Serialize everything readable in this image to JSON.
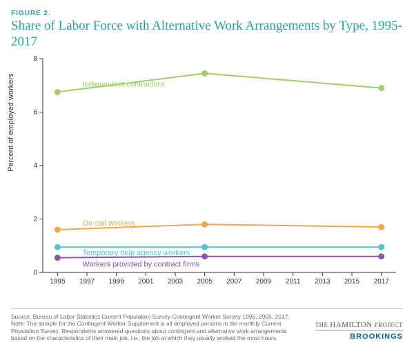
{
  "figure_label": "FIGURE 2.",
  "title": "Share of Labor Force with Alternative Work Arrangements by Type, 1995-2017",
  "chart": {
    "type": "line",
    "background_color": "#ffffff",
    "axis_color": "#333333",
    "axis_fontsize": 10,
    "title_fontsize": 19,
    "title_color": "#1fa79a",
    "label_fontsize": 11,
    "line_width": 2,
    "marker_radius": 4.5,
    "marker_style": "circle",
    "tick_len": 5,
    "xlabel": "",
    "ylabel": "Percent of employed workers",
    "xlim": [
      1994,
      2018
    ],
    "ylim": [
      0,
      8
    ],
    "xticks": [
      1995,
      1997,
      1999,
      2001,
      2003,
      2005,
      2007,
      2009,
      2011,
      2013,
      2015,
      2017
    ],
    "yticks": [
      0,
      2,
      4,
      6,
      8
    ],
    "grid": false,
    "series": [
      {
        "name": "Independent contractors",
        "color": "#a0cf66",
        "label_pos": "above-left",
        "x": [
          1995,
          2005,
          2017
        ],
        "y": [
          6.75,
          7.45,
          6.9
        ]
      },
      {
        "name": "On-call workers",
        "color": "#f0a64a",
        "label_pos": "above-left",
        "x": [
          1995,
          2005,
          2017
        ],
        "y": [
          1.6,
          1.8,
          1.7
        ]
      },
      {
        "name": "Temporary help agency workers",
        "color": "#51c3d8",
        "label_pos": "below-left",
        "x": [
          1995,
          2005,
          2017
        ],
        "y": [
          0.95,
          0.95,
          0.95
        ]
      },
      {
        "name": "Workers provided by contract firms",
        "color": "#8a56a8",
        "label_pos": "below-left",
        "x": [
          1995,
          2005,
          2017
        ],
        "y": [
          0.55,
          0.6,
          0.6
        ]
      }
    ]
  },
  "source": "Source: Bureau of Labor Statistics Current Population Survey Contingent Worker Survey 1995, 2005, 2017.",
  "note": "Note: The sample for the Contingent Worker Supplement is all employed persons in the monthly Current Population Survey. Respondents answered questions about contingent and alternative work arrangements based on the characteristics of their main job, i.e., the job at which they usually worked the most hours.",
  "logo": {
    "line1_small": "THE",
    "line1_big": "HAMILTON",
    "line1_tail": "PROJECT",
    "line2": "BROOKINGS"
  }
}
